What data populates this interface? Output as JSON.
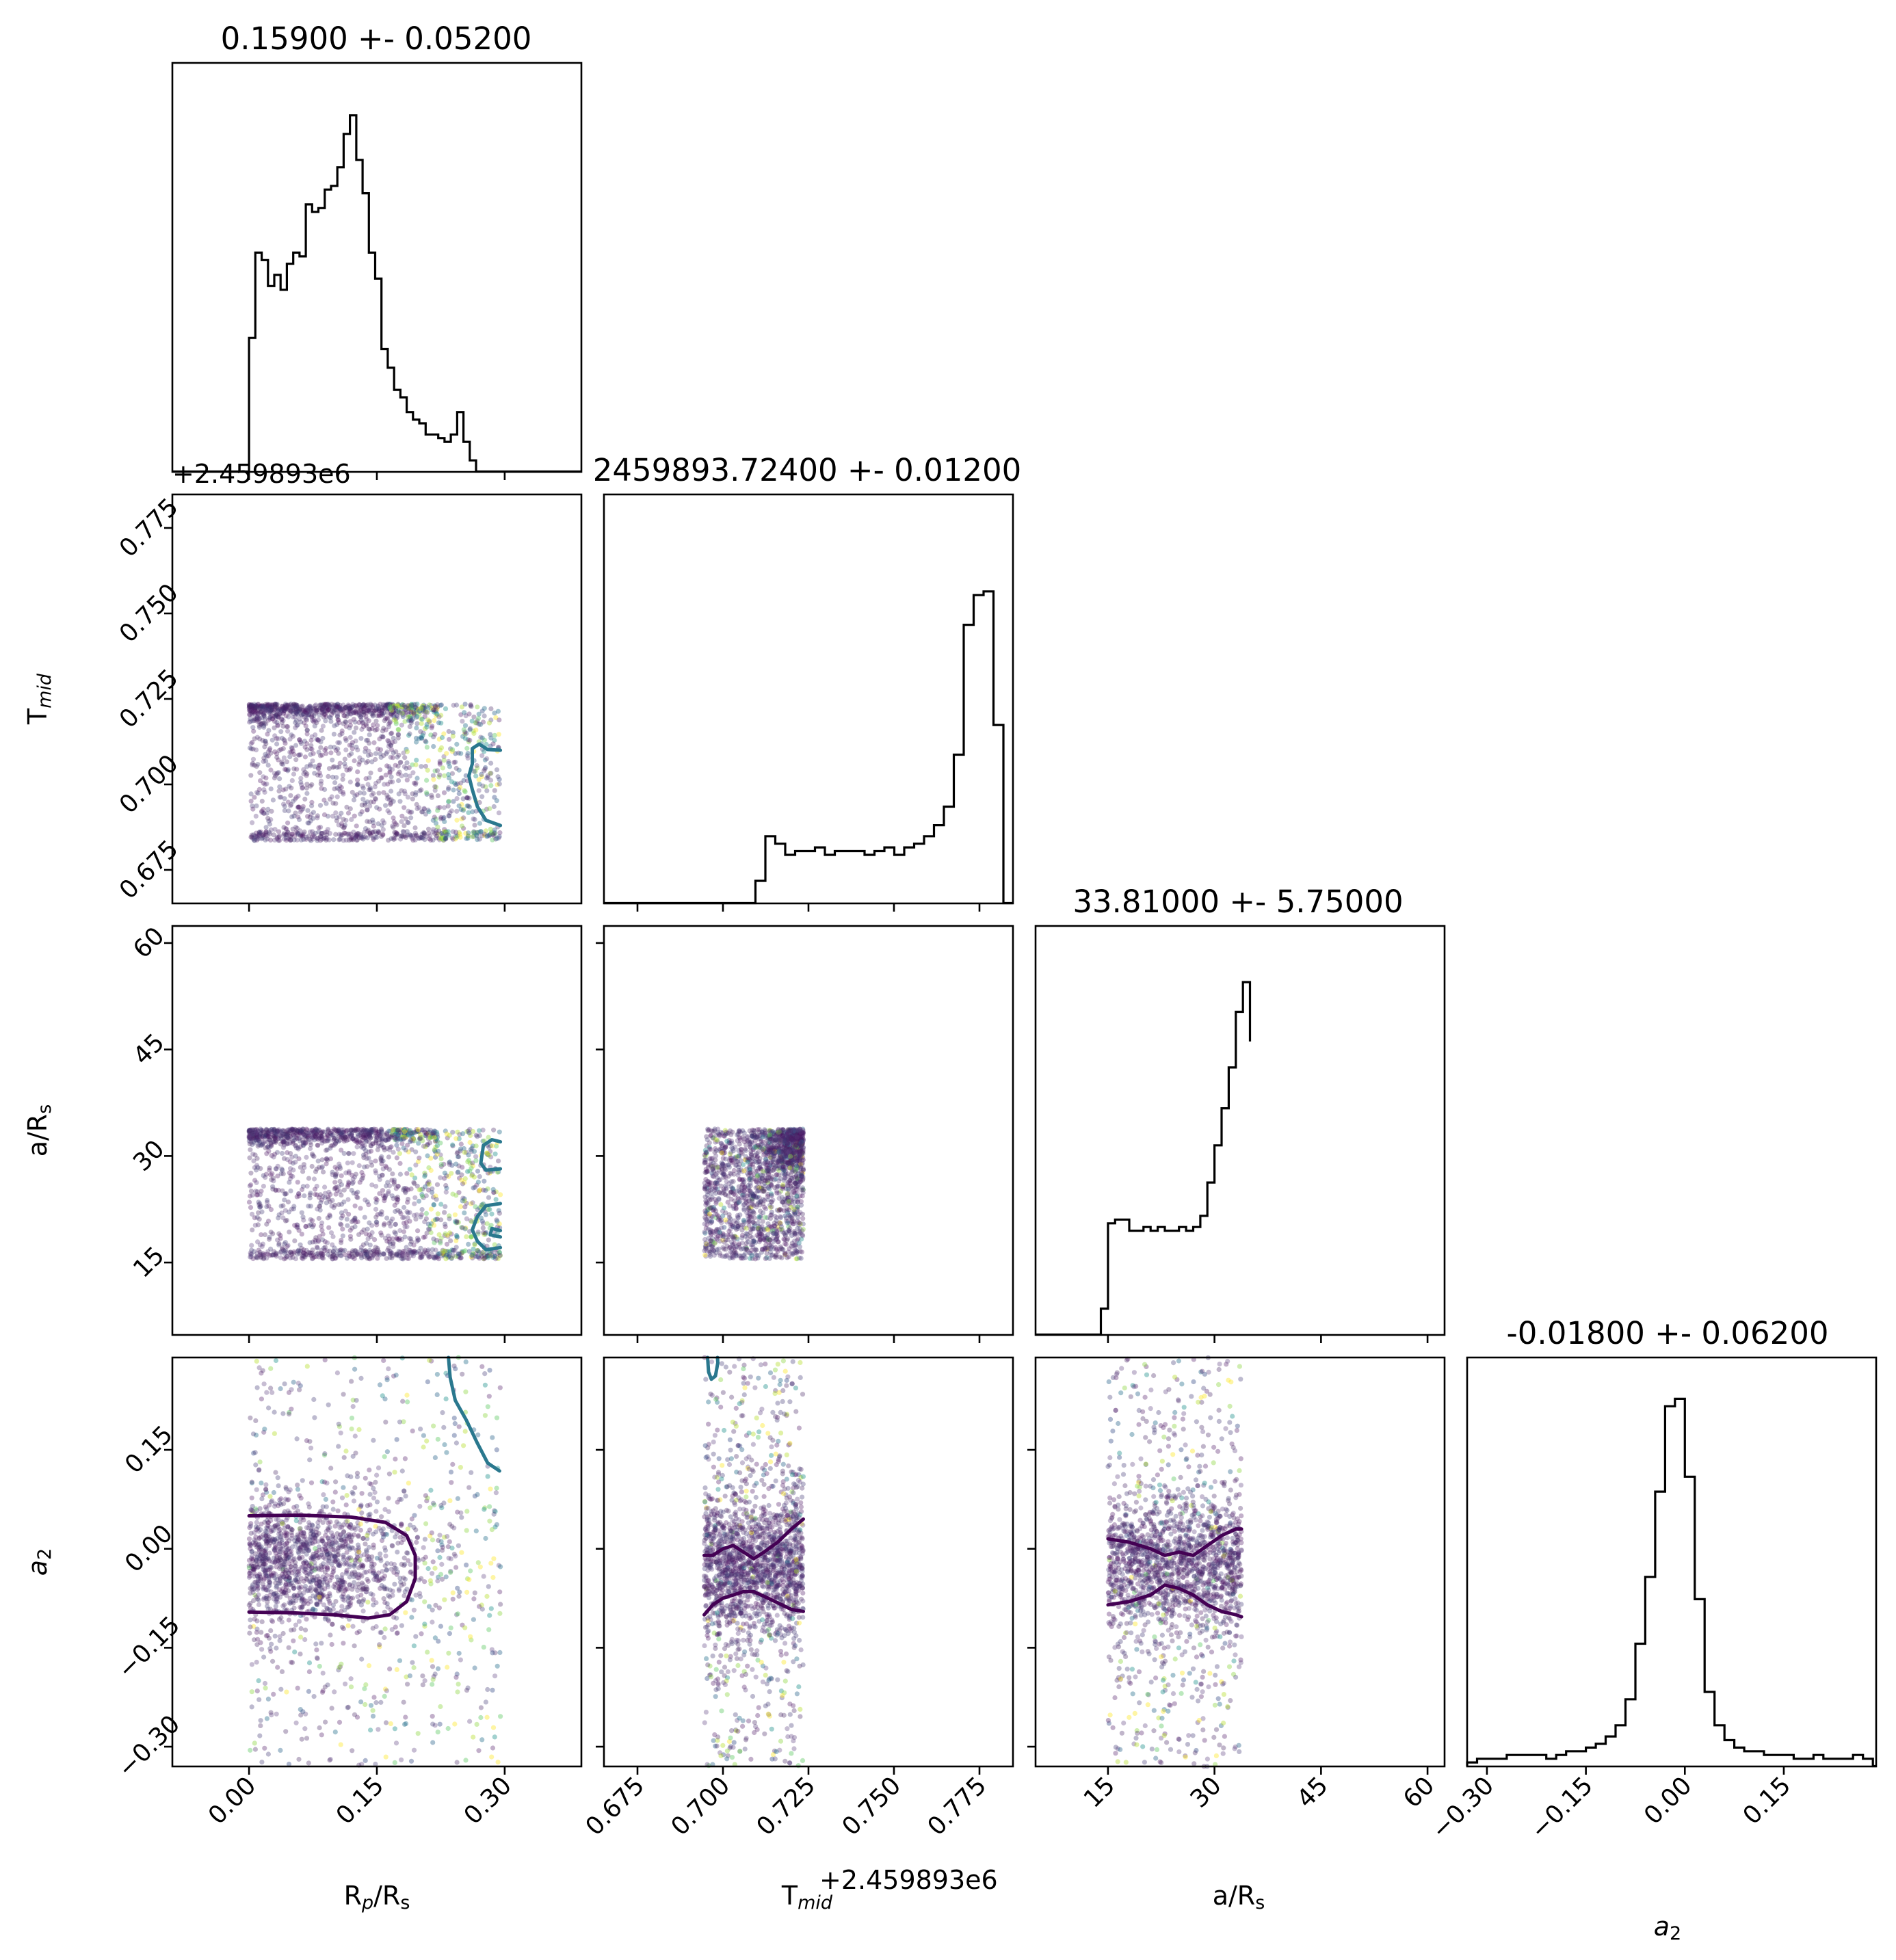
{
  "params": [
    {
      "key": "rp",
      "label_main": "R",
      "label_sub1": "p",
      "label_mid": "/R",
      "label_sub2": "s",
      "title": "0.15900 +- 0.05200",
      "range": [
        -0.09,
        0.39
      ],
      "ticks": [
        0.0,
        0.15,
        0.3
      ],
      "tick_labels": [
        "0.00",
        "0.15",
        "0.30"
      ]
    },
    {
      "key": "tmid",
      "label_main": "T",
      "label_sub1": "mid",
      "label_mid": "",
      "label_sub2": "",
      "title": "2459893.72400 +- 0.01200",
      "offset_text": "+2.459893e6",
      "range": [
        0.6652,
        0.7848
      ],
      "ticks": [
        0.675,
        0.7,
        0.725,
        0.75,
        0.775
      ],
      "tick_labels": [
        "0.675",
        "0.700",
        "0.725",
        "0.750",
        "0.775"
      ]
    },
    {
      "key": "ars",
      "label_main": "a/R",
      "label_sub1": "",
      "label_mid": "",
      "label_sub2": "s",
      "title": "33.81000 +- 5.75000",
      "range": [
        4.8,
        62.4
      ],
      "ticks": [
        15,
        30,
        45,
        60
      ],
      "tick_labels": [
        "15",
        "30",
        "45",
        "60"
      ]
    },
    {
      "key": "a2",
      "label_main": "a",
      "label_sub1": "",
      "label_mid": "",
      "label_sub2": "2",
      "italic": true,
      "title": "-0.01800 +- 0.06200",
      "range": [
        -0.33,
        0.29
      ],
      "ticks": [
        -0.3,
        -0.15,
        0.0,
        0.15
      ],
      "tick_labels": [
        "−0.30",
        "−0.15",
        "0.00",
        "0.15"
      ]
    }
  ],
  "chart_data": {
    "type": "corner",
    "grid": false,
    "scatter_color_map": "viridis",
    "contour_colors": {
      "inner": "#440154",
      "outer": "#2a788e"
    },
    "histograms": [
      {
        "param": "rp",
        "bins": [
          0.0,
          0.0074,
          0.0148,
          0.0222,
          0.0296,
          0.037,
          0.0444,
          0.0518,
          0.0592,
          0.0666,
          0.074,
          0.0814,
          0.0888,
          0.0962,
          0.1036,
          0.111,
          0.1184,
          0.1258,
          0.1332,
          0.1406,
          0.148,
          0.1554,
          0.1628,
          0.1702,
          0.1776,
          0.185,
          0.1924,
          0.1998,
          0.2072,
          0.2146,
          0.222,
          0.2294,
          0.2368,
          0.2442,
          0.2516,
          0.259,
          0.2664,
          0.2738,
          0.2812,
          0.2886,
          0.296
        ],
        "counts": [
          0.36,
          0.59,
          0.57,
          0.5,
          0.53,
          0.49,
          0.56,
          0.59,
          0.58,
          0.72,
          0.7,
          0.71,
          0.76,
          0.77,
          0.82,
          0.91,
          0.96,
          0.84,
          0.75,
          0.59,
          0.52,
          0.33,
          0.28,
          0.22,
          0.2,
          0.16,
          0.14,
          0.13,
          0.1,
          0.1,
          0.09,
          0.08,
          0.1,
          0.16,
          0.08,
          0.03,
          0.0,
          0.0,
          0.0,
          0.0
        ]
      },
      {
        "param": "tmid",
        "bins": [
          0.666,
          0.6689,
          0.6718,
          0.6747,
          0.6776,
          0.6805,
          0.6834,
          0.6863,
          0.6892,
          0.6921,
          0.695,
          0.6979,
          0.7008,
          0.7037,
          0.7066,
          0.7095,
          0.7124,
          0.7153,
          0.7182,
          0.7211,
          0.724,
          0.7269,
          0.7298,
          0.7327,
          0.7356,
          0.7385,
          0.7414,
          0.7443,
          0.7472,
          0.7501,
          0.753,
          0.7559,
          0.7588,
          0.7617,
          0.7646,
          0.7675,
          0.7704,
          0.7733,
          0.7762,
          0.7791,
          0.782
        ],
        "counts": [
          0.0,
          0.0,
          0.0,
          0.0,
          0.0,
          0.0,
          0.0,
          0.0,
          0.0,
          0.0,
          0.0,
          0.0,
          0.0,
          0.0,
          0.0,
          0.06,
          0.18,
          0.16,
          0.13,
          0.14,
          0.14,
          0.15,
          0.13,
          0.14,
          0.14,
          0.14,
          0.13,
          0.14,
          0.15,
          0.13,
          0.15,
          0.16,
          0.18,
          0.21,
          0.26,
          0.4,
          0.75,
          0.83,
          0.84,
          0.48
        ]
      },
      {
        "param": "ars",
        "bins": [
          12.0,
          13.0,
          14.0,
          15.0,
          16.0,
          17.0,
          18.0,
          19.0,
          20.0,
          21.0,
          22.0,
          23.0,
          24.0,
          25.0,
          26.0,
          27.0,
          28.0,
          29.0,
          30.0,
          31.0,
          32.0,
          33.0,
          34.0,
          35.0
        ],
        "counts": [
          0.0,
          0.0,
          0.07,
          0.3,
          0.31,
          0.31,
          0.28,
          0.28,
          0.29,
          0.28,
          0.29,
          0.28,
          0.28,
          0.29,
          0.28,
          0.29,
          0.32,
          0.41,
          0.51,
          0.61,
          0.72,
          0.87,
          0.95,
          0.79
        ]
      },
      {
        "param": "a2",
        "bins": [
          -0.33,
          -0.315,
          -0.3,
          -0.285,
          -0.27,
          -0.255,
          -0.24,
          -0.225,
          -0.21,
          -0.195,
          -0.18,
          -0.165,
          -0.15,
          -0.135,
          -0.12,
          -0.105,
          -0.09,
          -0.075,
          -0.06,
          -0.045,
          -0.03,
          -0.015,
          0.0,
          0.015,
          0.03,
          0.045,
          0.06,
          0.075,
          0.09,
          0.105,
          0.12,
          0.135,
          0.15,
          0.165,
          0.18,
          0.195,
          0.21,
          0.225,
          0.24,
          0.255,
          0.27,
          0.285
        ],
        "counts": [
          0.01,
          0.02,
          0.02,
          0.02,
          0.03,
          0.03,
          0.03,
          0.03,
          0.02,
          0.03,
          0.04,
          0.04,
          0.05,
          0.06,
          0.08,
          0.11,
          0.18,
          0.33,
          0.51,
          0.74,
          0.97,
          0.99,
          0.78,
          0.45,
          0.2,
          0.11,
          0.07,
          0.05,
          0.04,
          0.04,
          0.03,
          0.03,
          0.03,
          0.02,
          0.02,
          0.03,
          0.02,
          0.02,
          0.02,
          0.03,
          0.02
        ]
      }
    ],
    "scatter_panels": [
      {
        "x": "rp",
        "y": "tmid",
        "x_extent": [
          0.0,
          0.295
        ],
        "y_extent": [
          0.6835,
          0.7235
        ],
        "dense_ridge_y": 0.72
      },
      {
        "x": "rp",
        "y": "ars",
        "x_extent": [
          0.0,
          0.295
        ],
        "y_extent": [
          15.5,
          33.8
        ],
        "dense_ridge_y": 33.0
      },
      {
        "x": "tmid",
        "y": "ars",
        "x_extent": [
          0.6945,
          0.7235
        ],
        "y_extent": [
          15.5,
          33.8
        ],
        "dense_corner": [
          0.7235,
          33.8
        ]
      },
      {
        "x": "rp",
        "y": "a2",
        "x_extent": [
          0.0,
          0.295
        ],
        "y_extent": [
          -0.33,
          0.29
        ],
        "core_y": [
          -0.1,
          0.05
        ]
      },
      {
        "x": "tmid",
        "y": "a2",
        "x_extent": [
          0.6945,
          0.7235
        ],
        "y_extent": [
          -0.33,
          0.29
        ],
        "core_y": [
          -0.1,
          0.05
        ]
      },
      {
        "x": "ars",
        "y": "a2",
        "x_extent": [
          15.0,
          33.8
        ],
        "y_extent": [
          -0.33,
          0.29
        ],
        "core_y": [
          -0.1,
          0.05
        ]
      }
    ],
    "contours": [
      {
        "x": "rp",
        "y": "tmid",
        "color": "outer",
        "points": [
          [
            0.295,
            0.71
          ],
          [
            0.28,
            0.7102
          ],
          [
            0.27,
            0.7118
          ],
          [
            0.262,
            0.7105
          ],
          [
            0.262,
            0.706
          ],
          [
            0.258,
            0.7025
          ],
          [
            0.262,
            0.6985
          ],
          [
            0.268,
            0.6935
          ],
          [
            0.278,
            0.6895
          ],
          [
            0.295,
            0.688
          ]
        ]
      },
      {
        "x": "rp",
        "y": "ars",
        "color": "outer",
        "points": [
          [
            0.295,
            32.0
          ],
          [
            0.285,
            32.3
          ],
          [
            0.275,
            31.5
          ],
          [
            0.272,
            29.0
          ],
          [
            0.278,
            28.0
          ],
          [
            0.295,
            28.2
          ]
        ]
      },
      {
        "x": "rp",
        "y": "ars",
        "color": "outer",
        "points": [
          [
            0.295,
            23.3
          ],
          [
            0.278,
            23.0
          ],
          [
            0.268,
            21.5
          ],
          [
            0.262,
            19.6
          ],
          [
            0.268,
            18.0
          ],
          [
            0.278,
            16.8
          ],
          [
            0.295,
            17.1
          ]
        ]
      },
      {
        "x": "rp",
        "y": "ars",
        "color": "outer",
        "points": [
          [
            0.295,
            19.5
          ],
          [
            0.285,
            19.8
          ],
          [
            0.283,
            18.9
          ],
          [
            0.295,
            18.6
          ]
        ]
      },
      {
        "x": "rp",
        "y": "a2",
        "color": "outer",
        "points": [
          [
            0.234,
            0.29
          ],
          [
            0.236,
            0.26
          ],
          [
            0.242,
            0.225
          ],
          [
            0.255,
            0.195
          ],
          [
            0.268,
            0.16
          ],
          [
            0.28,
            0.13
          ],
          [
            0.294,
            0.118
          ]
        ]
      },
      {
        "x": "rp",
        "y": "a2",
        "color": "inner",
        "points": [
          [
            0.0,
            0.05
          ],
          [
            0.06,
            0.051
          ],
          [
            0.12,
            0.048
          ],
          [
            0.16,
            0.04
          ],
          [
            0.185,
            0.02
          ],
          [
            0.195,
            -0.01
          ],
          [
            0.195,
            -0.045
          ],
          [
            0.185,
            -0.08
          ],
          [
            0.165,
            -0.1
          ],
          [
            0.14,
            -0.105
          ],
          [
            0.1,
            -0.1
          ],
          [
            0.05,
            -0.097
          ],
          [
            0.0,
            -0.096
          ]
        ]
      },
      {
        "x": "tmid",
        "y": "a2",
        "color": "outer",
        "points": [
          [
            0.6955,
            0.29
          ],
          [
            0.6958,
            0.268
          ],
          [
            0.6966,
            0.257
          ],
          [
            0.6978,
            0.262
          ],
          [
            0.6985,
            0.282
          ],
          [
            0.6984,
            0.29
          ]
        ]
      },
      {
        "x": "tmid",
        "y": "a2",
        "color": "inner",
        "points": [
          [
            0.6945,
            -0.01
          ],
          [
            0.697,
            -0.01
          ],
          [
            0.7,
            0.0
          ],
          [
            0.703,
            0.005
          ],
          [
            0.706,
            -0.005
          ],
          [
            0.709,
            -0.015
          ],
          [
            0.712,
            -0.005
          ],
          [
            0.716,
            0.01
          ],
          [
            0.72,
            0.03
          ],
          [
            0.7235,
            0.045
          ]
        ]
      },
      {
        "x": "tmid",
        "y": "a2",
        "color": "inner",
        "points": [
          [
            0.6945,
            -0.1
          ],
          [
            0.697,
            -0.085
          ],
          [
            0.7,
            -0.075
          ],
          [
            0.703,
            -0.07
          ],
          [
            0.706,
            -0.065
          ],
          [
            0.709,
            -0.065
          ],
          [
            0.712,
            -0.072
          ],
          [
            0.716,
            -0.082
          ],
          [
            0.72,
            -0.092
          ],
          [
            0.7235,
            -0.095
          ]
        ]
      },
      {
        "x": "ars",
        "y": "a2",
        "color": "inner",
        "points": [
          [
            15.0,
            0.015
          ],
          [
            18.0,
            0.01
          ],
          [
            21.0,
            0.0
          ],
          [
            23.0,
            -0.01
          ],
          [
            25.0,
            -0.005
          ],
          [
            27.0,
            -0.01
          ],
          [
            29.0,
            0.005
          ],
          [
            31.0,
            0.02
          ],
          [
            33.0,
            0.03
          ],
          [
            33.8,
            0.03
          ]
        ]
      },
      {
        "x": "ars",
        "y": "a2",
        "color": "inner",
        "points": [
          [
            15.0,
            -0.085
          ],
          [
            18.0,
            -0.08
          ],
          [
            21.0,
            -0.07
          ],
          [
            23.0,
            -0.055
          ],
          [
            25.0,
            -0.06
          ],
          [
            27.0,
            -0.07
          ],
          [
            29.0,
            -0.085
          ],
          [
            31.0,
            -0.095
          ],
          [
            33.0,
            -0.1
          ],
          [
            33.8,
            -0.103
          ]
        ]
      }
    ]
  }
}
